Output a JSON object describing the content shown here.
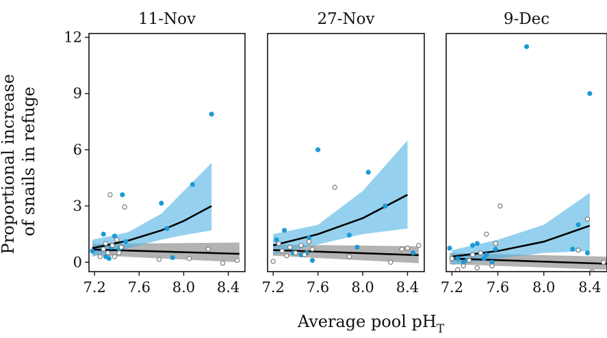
{
  "chart_data": {
    "type": "scatter",
    "xlabel": "Average pool pH",
    "xlabel_subscript": "T",
    "ylabel": [
      "Proportional increase",
      "of snails in refuge"
    ],
    "xlim": [
      7.15,
      8.55
    ],
    "ylim": [
      -0.5,
      12.2
    ],
    "xticks": [
      "7.2",
      "7.6",
      "8.0",
      "8.4"
    ],
    "yticks": [
      "0",
      "3",
      "6",
      "9",
      "12"
    ],
    "colors": {
      "filled": "#1c9ad6",
      "ribbon_filled": "#4fb3e2",
      "open": "#7a7a7a",
      "ribbon_open": "#9a9a9a",
      "line": "#000000"
    },
    "panels": [
      {
        "label": "11-Nov",
        "series": [
          {
            "style": "filled",
            "points": [
              [
                7.18,
                0.6
              ],
              [
                7.28,
                1.5
              ],
              [
                7.3,
                0.3
              ],
              [
                7.33,
                0.2
              ],
              [
                7.35,
                0.8
              ],
              [
                7.38,
                1.4
              ],
              [
                7.42,
                0.7
              ],
              [
                7.45,
                3.6
              ],
              [
                7.48,
                1.1
              ],
              [
                7.8,
                3.15
              ],
              [
                7.85,
                1.8
              ],
              [
                7.9,
                0.25
              ],
              [
                8.08,
                4.15
              ],
              [
                8.25,
                7.9
              ]
            ],
            "fit": [
              [
                7.18,
                0.75
              ],
              [
                7.5,
                1.15
              ],
              [
                7.8,
                1.7
              ],
              [
                8.0,
                2.2
              ],
              [
                8.25,
                3.0
              ]
            ],
            "ci_low": [
              0.3,
              0.75,
              1.2,
              1.45,
              1.7
            ],
            "ci_high": [
              1.2,
              1.6,
              2.6,
              3.8,
              5.3
            ]
          },
          {
            "style": "open",
            "points": [
              [
                7.25,
                0.3
              ],
              [
                7.28,
                0.7
              ],
              [
                7.3,
                1.0
              ],
              [
                7.32,
                0.5
              ],
              [
                7.34,
                3.6
              ],
              [
                7.36,
                0.9
              ],
              [
                7.38,
                0.3
              ],
              [
                7.4,
                1.2
              ],
              [
                7.42,
                0.5
              ],
              [
                7.44,
                0.8
              ],
              [
                7.47,
                2.95
              ],
              [
                7.78,
                0.15
              ],
              [
                8.05,
                0.2
              ],
              [
                8.22,
                0.7
              ],
              [
                8.35,
                -0.05
              ],
              [
                8.48,
                0.1
              ]
            ],
            "fit": [
              [
                7.18,
                0.68
              ],
              [
                8.5,
                0.45
              ]
            ],
            "ci_low": [
              0.38,
              0.0
            ],
            "ci_high": [
              0.98,
              1.05
            ]
          }
        ]
      },
      {
        "label": "27-Nov",
        "series": [
          {
            "style": "filled",
            "points": [
              [
                7.23,
                1.2
              ],
              [
                7.3,
                1.7
              ],
              [
                7.38,
                0.5
              ],
              [
                7.45,
                0.4
              ],
              [
                7.5,
                0.5
              ],
              [
                7.52,
                1.3
              ],
              [
                7.55,
                0.1
              ],
              [
                7.6,
                6.0
              ],
              [
                7.88,
                1.45
              ],
              [
                7.95,
                0.8
              ],
              [
                8.05,
                4.8
              ],
              [
                8.2,
                3.0
              ],
              [
                8.45,
                0.5
              ]
            ],
            "fit": [
              [
                7.2,
                0.9
              ],
              [
                7.6,
                1.5
              ],
              [
                8.0,
                2.35
              ],
              [
                8.4,
                3.6
              ]
            ],
            "ci_low": [
              0.4,
              0.95,
              1.5,
              1.8
            ],
            "ci_high": [
              1.5,
              2.0,
              3.8,
              6.5
            ]
          },
          {
            "style": "open",
            "points": [
              [
                7.2,
                0.05
              ],
              [
                7.25,
                1.0
              ],
              [
                7.28,
                0.6
              ],
              [
                7.32,
                0.35
              ],
              [
                7.35,
                0.8
              ],
              [
                7.4,
                0.5
              ],
              [
                7.45,
                0.9
              ],
              [
                7.48,
                0.4
              ],
              [
                7.52,
                1.1
              ],
              [
                7.55,
                0.7
              ],
              [
                7.75,
                4.0
              ],
              [
                7.88,
                0.3
              ],
              [
                8.25,
                0.0
              ],
              [
                8.35,
                0.7
              ],
              [
                8.4,
                0.75
              ],
              [
                8.5,
                0.9
              ]
            ],
            "fit": [
              [
                7.2,
                0.65
              ],
              [
                8.5,
                0.38
              ]
            ],
            "ci_low": [
              0.35,
              -0.05
            ],
            "ci_high": [
              0.95,
              0.85
            ]
          }
        ]
      },
      {
        "label": "9-Dec",
        "series": [
          {
            "style": "filled",
            "points": [
              [
                7.18,
                0.75
              ],
              [
                7.25,
                0.2
              ],
              [
                7.3,
                0.0
              ],
              [
                7.33,
                0.1
              ],
              [
                7.38,
                0.9
              ],
              [
                7.42,
                1.0
              ],
              [
                7.45,
                0.5
              ],
              [
                7.48,
                0.2
              ],
              [
                7.5,
                0.4
              ],
              [
                7.55,
                0.0
              ],
              [
                7.58,
                0.7
              ],
              [
                7.85,
                11.5
              ],
              [
                8.25,
                0.7
              ],
              [
                8.3,
                2.0
              ],
              [
                8.38,
                0.5
              ],
              [
                8.4,
                9.0
              ]
            ],
            "fit": [
              [
                7.2,
                0.3
              ],
              [
                7.6,
                0.6
              ],
              [
                8.0,
                1.1
              ],
              [
                8.4,
                1.95
              ]
            ],
            "ci_low": [
              -0.15,
              0.2,
              0.5,
              0.6
            ],
            "ci_high": [
              0.65,
              1.2,
              2.0,
              3.7
            ]
          },
          {
            "style": "open",
            "points": [
              [
                7.2,
                0.2
              ],
              [
                7.25,
                -0.4
              ],
              [
                7.3,
                -0.2
              ],
              [
                7.35,
                0.1
              ],
              [
                7.38,
                0.4
              ],
              [
                7.42,
                -0.3
              ],
              [
                7.45,
                0.5
              ],
              [
                7.5,
                1.5
              ],
              [
                7.55,
                -0.2
              ],
              [
                7.58,
                1.0
              ],
              [
                7.62,
                3.0
              ],
              [
                8.3,
                0.65
              ],
              [
                8.38,
                2.3
              ],
              [
                8.42,
                -0.5
              ],
              [
                8.52,
                0.0
              ]
            ],
            "fit": [
              [
                7.18,
                0.2
              ],
              [
                8.55,
                -0.08
              ]
            ],
            "ci_low": [
              -0.1,
              -0.4
            ],
            "ci_high": [
              0.5,
              0.3
            ]
          }
        ]
      }
    ]
  }
}
